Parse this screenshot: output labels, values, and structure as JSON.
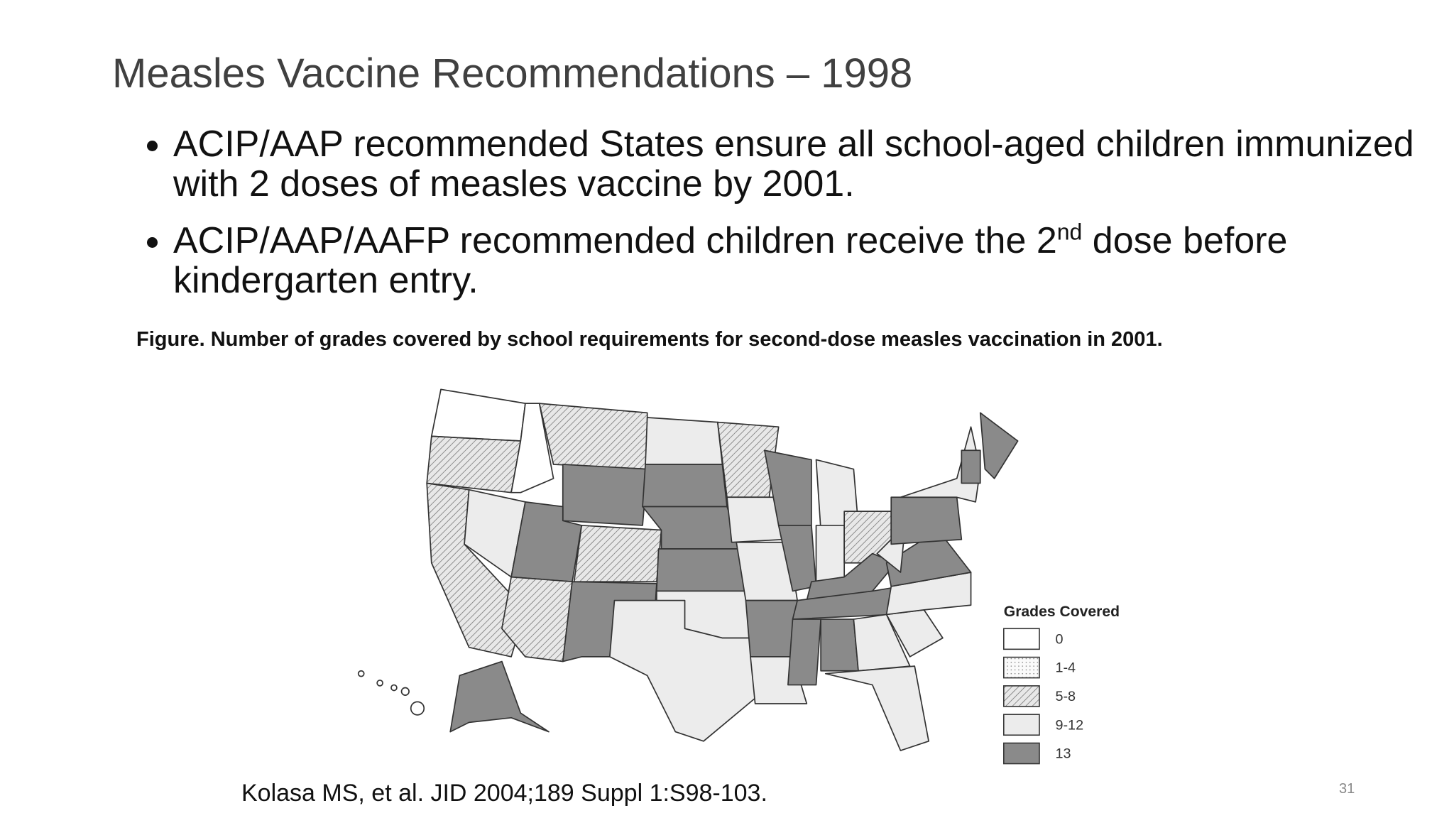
{
  "title": "Measles Vaccine Recommendations – 1998",
  "bullets": [
    {
      "text": "ACIP/AAP recommended States ensure all school-aged children immunized with 2 doses of measles vaccine by 2001."
    },
    {
      "text_before": "ACIP/AAP/AAFP recommended children receive the 2",
      "superscript": "nd",
      "text_after": " dose before kindergarten entry."
    }
  ],
  "figure_caption": "Figure. Number of grades covered by school requirements for second-dose measles vaccination in 2001.",
  "legend": {
    "title": "Grades Covered",
    "items": [
      "0",
      "1-4",
      "5-8",
      "9-12",
      "13"
    ]
  },
  "citation": "Kolasa MS,  et al. JID 2004;189 Suppl 1:S98-103.",
  "page_number": "31"
}
